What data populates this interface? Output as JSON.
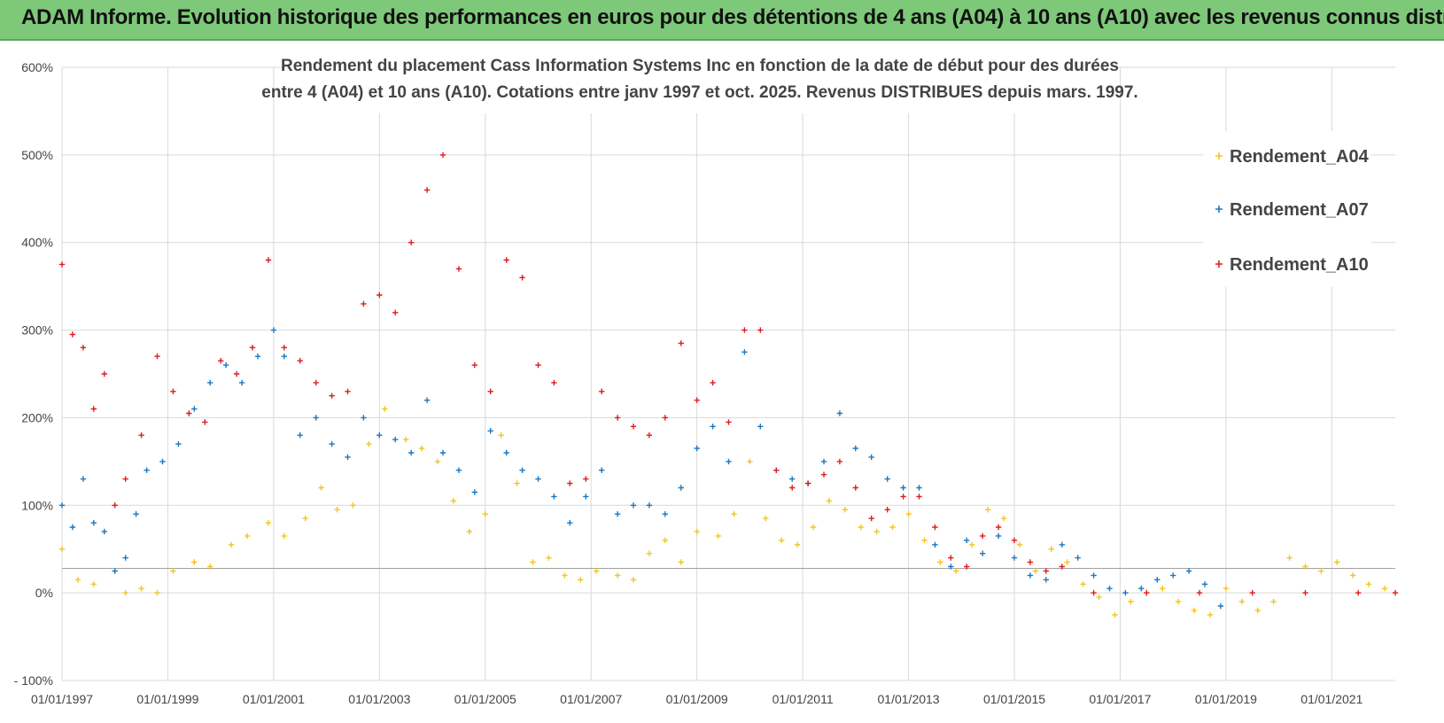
{
  "header": {
    "title": "ADAM Informe. Evolution historique des performances en euros pour des détentions de 4 ans (A04) à 10 ans (A10) avec les revenus connus distribués"
  },
  "chart_data": {
    "type": "scatter",
    "title_line1": "Rendement du placement Cass Information Systems Inc en fonction de la date de début pour des durées",
    "title_line2": "entre 4 (A04) et 10 ans (A10).  Cotations entre janv 1997 et oct. 2025.  Revenus DISTRIBUES depuis mars. 1997.",
    "xlabel": "",
    "ylabel": "",
    "xlim": [
      1997.0,
      2022.2
    ],
    "ylim": [
      -100,
      600
    ],
    "yticks": [
      -100,
      0,
      100,
      200,
      300,
      400,
      500,
      600
    ],
    "ytick_labels": [
      "- 100%",
      "0%",
      "100%",
      "200%",
      "300%",
      "400%",
      "500%",
      "600%"
    ],
    "xtick_labels": [
      "01/01/1997",
      "01/01/1999",
      "01/01/2001",
      "01/01/2003",
      "01/01/2005",
      "01/01/2007",
      "01/01/2009",
      "01/01/2011",
      "01/01/2013",
      "01/01/2015",
      "01/01/2017",
      "01/01/2019",
      "01/01/2021"
    ],
    "xtick_years": [
      1997,
      1999,
      2001,
      2003,
      2005,
      2007,
      2009,
      2011,
      2013,
      2015,
      2017,
      2019,
      2021
    ],
    "reference_line": 28,
    "legend_position": "top-right",
    "series": [
      {
        "name": "Rendement_A04",
        "color": "#f5c518",
        "x": [
          1997.0,
          1997.3,
          1997.6,
          1998.0,
          1998.2,
          1998.5,
          1998.8,
          1999.1,
          1999.5,
          1999.8,
          2000.2,
          2000.5,
          2000.9,
          2001.2,
          2001.6,
          2001.9,
          2002.2,
          2002.5,
          2002.8,
          2003.1,
          2003.5,
          2003.8,
          2004.1,
          2004.4,
          2004.7,
          2005.0,
          2005.3,
          2005.6,
          2005.9,
          2006.2,
          2006.5,
          2006.8,
          2007.1,
          2007.5,
          2007.8,
          2008.1,
          2008.4,
          2008.7,
          2009.0,
          2009.4,
          2009.7,
          2010.0,
          2010.3,
          2010.6,
          2010.9,
          2011.2,
          2011.5,
          2011.8,
          2012.1,
          2012.4,
          2012.7,
          2013.0,
          2013.3,
          2013.6,
          2013.9,
          2014.2,
          2014.5,
          2014.8,
          2015.1,
          2015.4,
          2015.7,
          2016.0,
          2016.3,
          2016.6,
          2016.9,
          2017.2,
          2017.5,
          2017.8,
          2018.1,
          2018.4,
          2018.7,
          2019.0,
          2019.3,
          2019.6,
          2019.9,
          2020.2,
          2020.5,
          2020.8,
          2021.1,
          2021.4,
          2021.7,
          2022.0
        ],
        "values": [
          50,
          15,
          10,
          25,
          0,
          5,
          0,
          25,
          35,
          30,
          55,
          65,
          80,
          65,
          85,
          120,
          95,
          100,
          170,
          210,
          175,
          165,
          150,
          105,
          70,
          90,
          180,
          125,
          35,
          40,
          20,
          15,
          25,
          20,
          15,
          45,
          60,
          35,
          70,
          65,
          90,
          150,
          85,
          60,
          55,
          75,
          105,
          95,
          75,
          70,
          75,
          90,
          60,
          35,
          25,
          55,
          95,
          85,
          55,
          25,
          50,
          35,
          10,
          -5,
          -25,
          -10,
          0,
          5,
          -10,
          -20,
          -25,
          5,
          -10,
          -20,
          -10,
          40,
          30,
          25,
          35,
          20,
          10,
          5
        ]
      },
      {
        "name": "Rendement_A07",
        "color": "#1a78c2",
        "x": [
          1997.0,
          1997.2,
          1997.4,
          1997.6,
          1997.8,
          1998.0,
          1998.2,
          1998.4,
          1998.6,
          1998.9,
          1999.2,
          1999.5,
          1999.8,
          2000.1,
          2000.4,
          2000.7,
          2001.0,
          2001.2,
          2001.5,
          2001.8,
          2002.1,
          2002.4,
          2002.7,
          2003.0,
          2003.3,
          2003.6,
          2003.9,
          2004.2,
          2004.5,
          2004.8,
          2005.1,
          2005.4,
          2005.7,
          2006.0,
          2006.3,
          2006.6,
          2006.9,
          2007.2,
          2007.5,
          2007.8,
          2008.1,
          2008.4,
          2008.7,
          2009.0,
          2009.3,
          2009.6,
          2009.9,
          2010.2,
          2010.5,
          2010.8,
          2011.1,
          2011.4,
          2011.7,
          2012.0,
          2012.3,
          2012.6,
          2012.9,
          2013.2,
          2013.5,
          2013.8,
          2014.1,
          2014.4,
          2014.7,
          2015.0,
          2015.3,
          2015.6,
          2015.9,
          2016.2,
          2016.5,
          2016.8,
          2017.1,
          2017.4,
          2017.7,
          2018.0,
          2018.3,
          2018.6,
          2018.9
        ],
        "values": [
          100,
          75,
          130,
          80,
          70,
          25,
          40,
          90,
          140,
          150,
          170,
          210,
          240,
          260,
          240,
          270,
          300,
          270,
          180,
          200,
          170,
          155,
          200,
          180,
          175,
          160,
          220,
          160,
          140,
          115,
          185,
          160,
          140,
          130,
          110,
          80,
          110,
          140,
          90,
          100,
          100,
          90,
          120,
          165,
          190,
          150,
          275,
          190,
          140,
          130,
          125,
          150,
          205,
          165,
          155,
          130,
          120,
          120,
          55,
          30,
          60,
          45,
          65,
          40,
          20,
          15,
          55,
          40,
          20,
          5,
          0,
          5,
          15,
          20,
          25,
          10,
          -15
        ]
      },
      {
        "name": "Rendement_A10",
        "color": "#e31b1b",
        "x": [
          1997.0,
          1997.2,
          1997.4,
          1997.6,
          1997.8,
          1998.0,
          1998.2,
          1998.5,
          1998.8,
          1999.1,
          1999.4,
          1999.7,
          2000.0,
          2000.3,
          2000.6,
          2000.9,
          2001.2,
          2001.5,
          2001.8,
          2002.1,
          2002.4,
          2002.7,
          2003.0,
          2003.3,
          2003.6,
          2003.9,
          2004.2,
          2004.5,
          2004.8,
          2005.1,
          2005.4,
          2005.7,
          2006.0,
          2006.3,
          2006.6,
          2006.9,
          2007.2,
          2007.5,
          2007.8,
          2008.1,
          2008.4,
          2008.7,
          2009.0,
          2009.3,
          2009.6,
          2009.9,
          2010.2,
          2010.5,
          2010.8,
          2011.1,
          2011.4,
          2011.7,
          2012.0,
          2012.3,
          2012.6,
          2012.9,
          2013.2,
          2013.5,
          2013.8,
          2014.1,
          2014.4,
          2014.7,
          2015.0,
          2015.3,
          2015.6,
          2015.9,
          2016.5,
          2017.5,
          2018.5,
          2019.5,
          2020.5,
          2021.5,
          2022.2
        ],
        "values": [
          375,
          295,
          280,
          210,
          250,
          100,
          130,
          180,
          270,
          230,
          205,
          195,
          265,
          250,
          280,
          380,
          280,
          265,
          240,
          225,
          230,
          330,
          340,
          320,
          400,
          460,
          500,
          370,
          260,
          230,
          380,
          360,
          260,
          240,
          125,
          130,
          230,
          200,
          190,
          180,
          200,
          285,
          220,
          240,
          195,
          300,
          300,
          140,
          120,
          125,
          135,
          150,
          120,
          85,
          95,
          110,
          110,
          75,
          40,
          30,
          65,
          75,
          60,
          35,
          25,
          30,
          0,
          0,
          0,
          0,
          0,
          0,
          0
        ]
      }
    ]
  }
}
